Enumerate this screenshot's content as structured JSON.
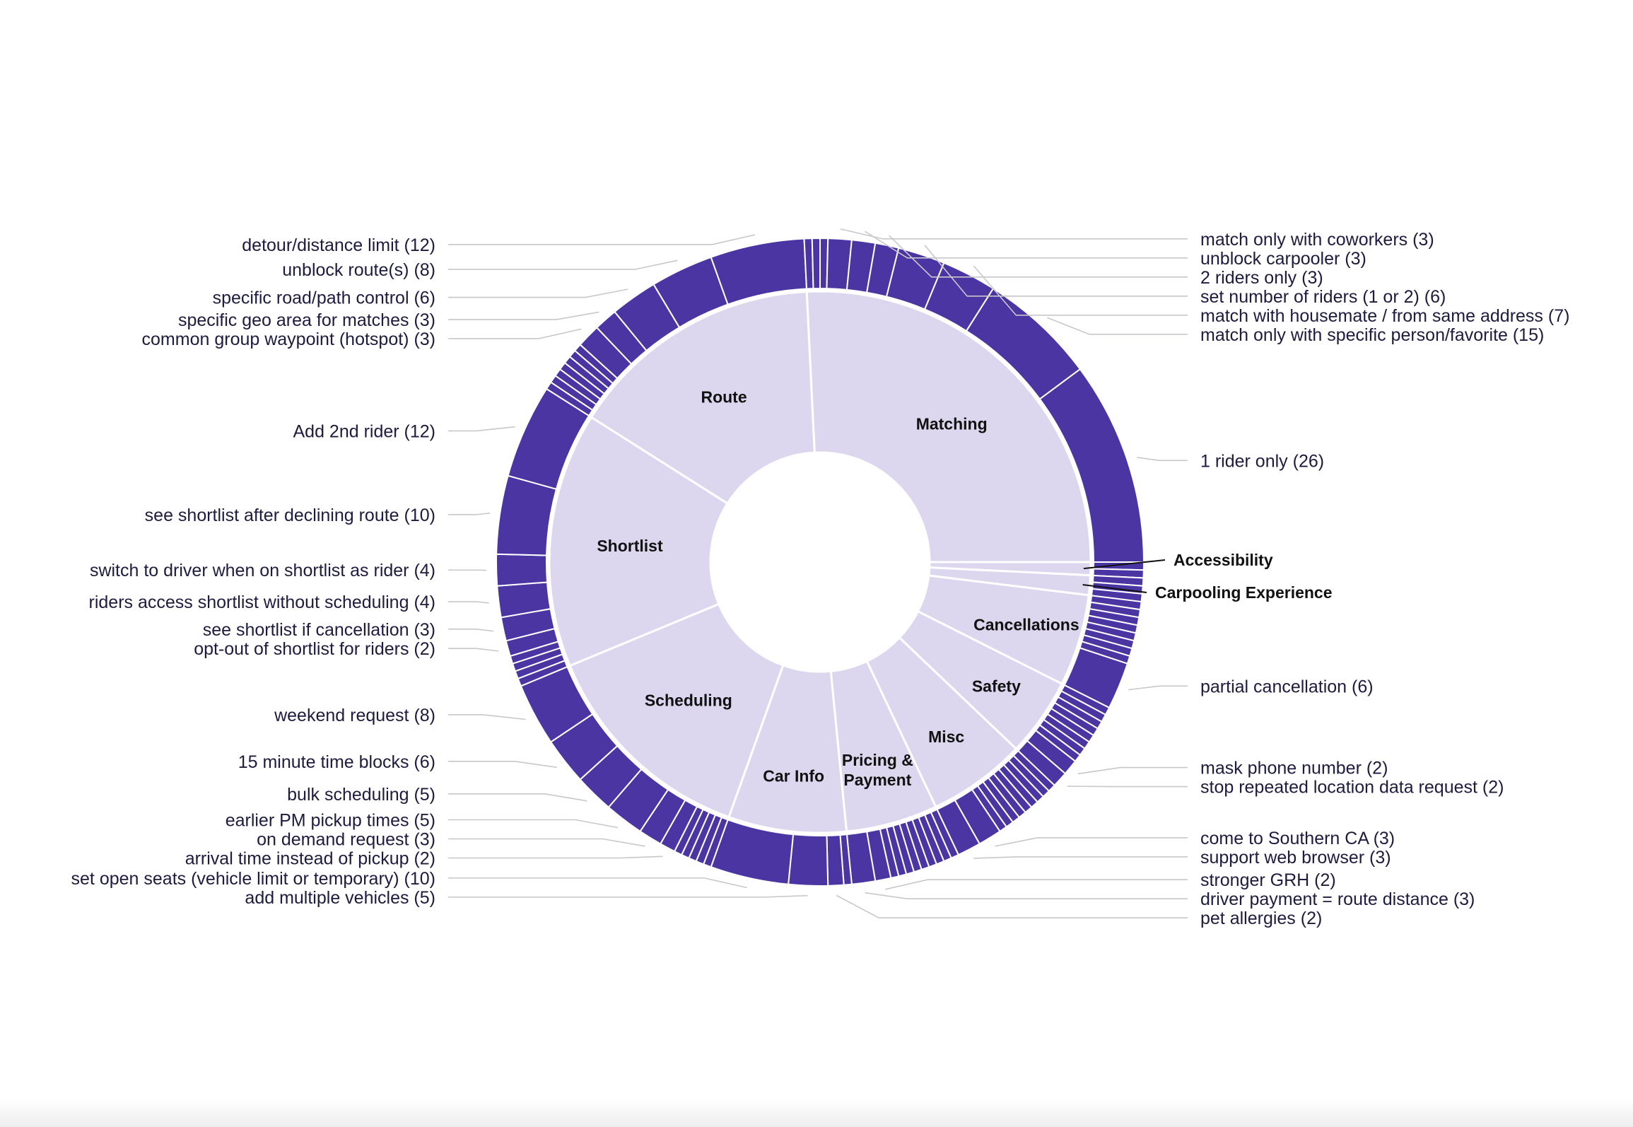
{
  "chart_data": {
    "type": "sunburst",
    "title": "",
    "colors": {
      "inner": "#dcd7ee",
      "outer": "#4b35a3",
      "separator": "#ffffff",
      "leader": "#c8c8cc"
    },
    "categories": [
      {
        "name": "Matching",
        "children": [
          {
            "label": "1 rider only (26)",
            "value": 26
          },
          {
            "label": "match only with specific person/favorite (15)",
            "value": 15
          },
          {
            "label": "match with housemate / from same address (7)",
            "value": 7
          },
          {
            "label": "set number of riders (1 or 2) (6)",
            "value": 6
          },
          {
            "label": "2 riders only (3)",
            "value": 3
          },
          {
            "label": "unblock carpooler (3)",
            "value": 3
          },
          {
            "label": "match only with coworkers (3)",
            "value": 3
          }
        ],
        "small": [
          1,
          1,
          1
        ]
      },
      {
        "name": "Route",
        "children": [
          {
            "label": "detour/distance limit (12)",
            "value": 12
          },
          {
            "label": "unblock route(s) (8)",
            "value": 8
          },
          {
            "label": "specific road/path control (6)",
            "value": 6
          },
          {
            "label": "specific geo area for matches (3)",
            "value": 3
          },
          {
            "label": "common group waypoint (hotspot) (3)",
            "value": 3
          }
        ],
        "small": [
          1,
          1,
          1,
          1,
          1,
          1,
          1
        ]
      },
      {
        "name": "Shortlist",
        "children": [
          {
            "label": "Add 2nd rider (12)",
            "value": 12
          },
          {
            "label": "see shortlist after declining route (10)",
            "value": 10
          },
          {
            "label": "switch to driver when on shortlist as rider (4)",
            "value": 4
          },
          {
            "label": "riders access shortlist without scheduling (4)",
            "value": 4
          },
          {
            "label": "see shortlist if cancellation (3)",
            "value": 3
          },
          {
            "label": "opt-out of shortlist for riders (2)",
            "value": 2
          }
        ],
        "small": [
          1,
          1,
          1,
          1
        ]
      },
      {
        "name": "Scheduling",
        "children": [
          {
            "label": "weekend request (8)",
            "value": 8
          },
          {
            "label": "15 minute time blocks (6)",
            "value": 6
          },
          {
            "label": "bulk scheduling (5)",
            "value": 5
          },
          {
            "label": "earlier PM pickup times (5)",
            "value": 5
          },
          {
            "label": "on demand request (3)",
            "value": 3
          },
          {
            "label": "arrival time instead of pickup (2)",
            "value": 2
          }
        ],
        "small": [
          1,
          1,
          1,
          1,
          1
        ]
      },
      {
        "name": "Car Info",
        "children": [
          {
            "label": "set open seats (vehicle limit or temporary) (10)",
            "value": 10
          },
          {
            "label": "add multiple vehicles (5)",
            "value": 5
          },
          {
            "label": "pet allergies (2)",
            "value": 2
          }
        ],
        "small": [
          1
        ]
      },
      {
        "name": "Pricing & Payment",
        "children": [
          {
            "label": "driver payment = route distance (3)",
            "value": 3
          },
          {
            "label": "stronger GRH (2)",
            "value": 2
          }
        ],
        "small": [
          1,
          1,
          1,
          1,
          1,
          1,
          1,
          1,
          1
        ]
      },
      {
        "name": "Misc",
        "children": [
          {
            "label": "support web browser (3)",
            "value": 3
          },
          {
            "label": "come to Southern CA (3)",
            "value": 3
          }
        ],
        "small": [
          1,
          1,
          1,
          1,
          1,
          1,
          1,
          1,
          1
        ]
      },
      {
        "name": "Safety",
        "children": [
          {
            "label": "stop repeated location data request (2)",
            "value": 2
          },
          {
            "label": "mask phone number (2)",
            "value": 2
          }
        ],
        "small": [
          1,
          1,
          1,
          1,
          1,
          1,
          1,
          1
        ]
      },
      {
        "name": "Cancellations",
        "children": [
          {
            "label": "partial cancellation (6)",
            "value": 6
          }
        ],
        "small": [
          1,
          1,
          1,
          1,
          1,
          1,
          1,
          1
        ]
      },
      {
        "name": "Carpooling Experience",
        "children": [],
        "small": [
          1,
          1,
          1
        ]
      },
      {
        "name": "Accessibility",
        "children": [],
        "small": [
          1,
          1
        ]
      }
    ]
  }
}
